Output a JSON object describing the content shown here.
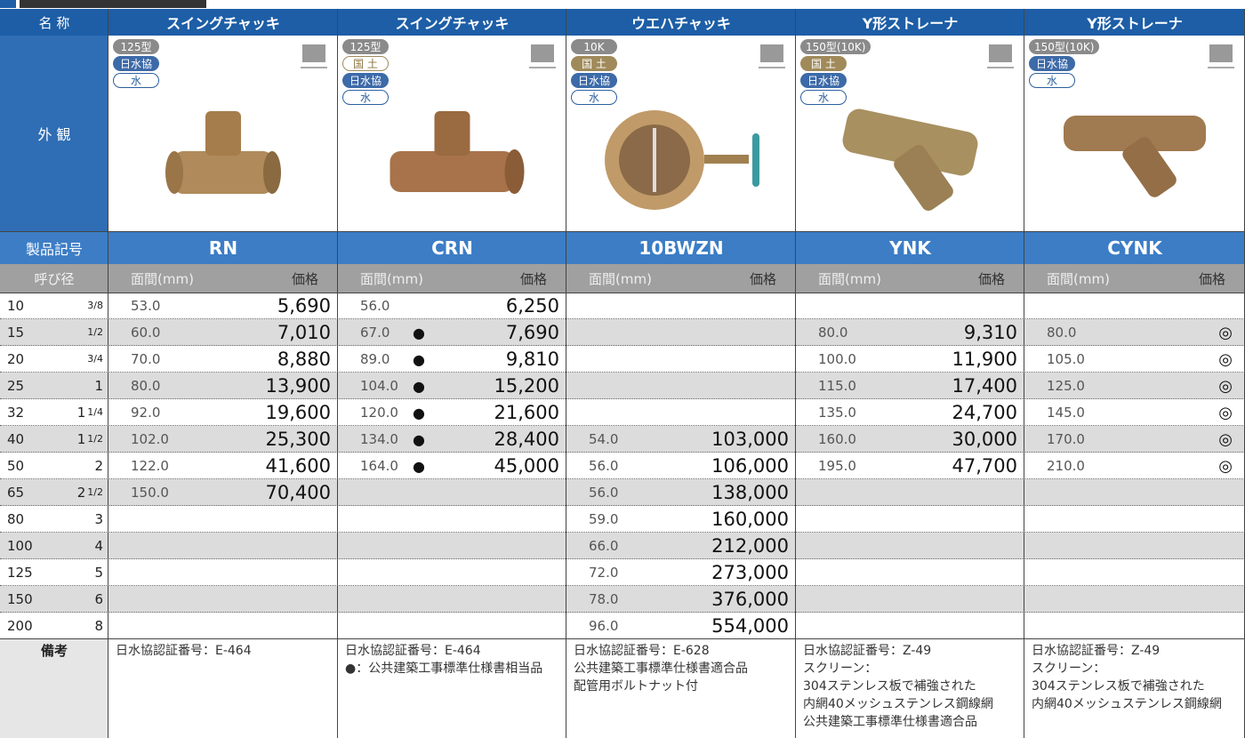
{
  "table": {
    "labels": {
      "name": "名 称",
      "appearance": "外 観",
      "code": "製品記号",
      "size": "呼び径",
      "notes": "備考"
    },
    "subheader": {
      "face": "面間(mm)",
      "price": "価格"
    },
    "sizes": [
      {
        "mm": "10",
        "whole": null,
        "fraction": "3/8"
      },
      {
        "mm": "15",
        "whole": null,
        "fraction": "1/2"
      },
      {
        "mm": "20",
        "whole": null,
        "fraction": "3/4"
      },
      {
        "mm": "25",
        "whole": "1",
        "fraction": null
      },
      {
        "mm": "32",
        "whole": "1",
        "fraction": "1/4"
      },
      {
        "mm": "40",
        "whole": "1",
        "fraction": "1/2"
      },
      {
        "mm": "50",
        "whole": "2",
        "fraction": null
      },
      {
        "mm": "65",
        "whole": "2",
        "fraction": "1/2"
      },
      {
        "mm": "80",
        "whole": "3",
        "fraction": null
      },
      {
        "mm": "100",
        "whole": "4",
        "fraction": null
      },
      {
        "mm": "125",
        "whole": "5",
        "fraction": null
      },
      {
        "mm": "150",
        "whole": "6",
        "fraction": null
      },
      {
        "mm": "200",
        "whole": "8",
        "fraction": null
      }
    ],
    "products": [
      {
        "name": "スイングチャッキ",
        "code": "RN",
        "badges": [
          {
            "text": "125型",
            "fill": "#8a8a8a",
            "ink": "#ffffff",
            "border": "#8a8a8a"
          },
          {
            "text": "日水協",
            "fill": "#3d6aa8",
            "ink": "#ffffff",
            "border": "#3d6aa8"
          },
          {
            "text": "水",
            "fill": "#ffffff",
            "ink": "#2a5fa0",
            "border": "#2a5fa0"
          }
        ],
        "rows": [
          {
            "face": "53.0",
            "price": "5,690"
          },
          {
            "face": "60.0",
            "price": "7,010"
          },
          {
            "face": "70.0",
            "price": "8,880"
          },
          {
            "face": "80.0",
            "price": "13,900"
          },
          {
            "face": "92.0",
            "price": "19,600"
          },
          {
            "face": "102.0",
            "price": "25,300"
          },
          {
            "face": "122.0",
            "price": "41,600"
          },
          {
            "face": "150.0",
            "price": "70,400"
          },
          null,
          null,
          null,
          null,
          null
        ],
        "notes": [
          "日水協認証番号：E-464"
        ]
      },
      {
        "name": "スイングチャッキ",
        "code": "CRN",
        "badges": [
          {
            "text": "125型",
            "fill": "#8a8a8a",
            "ink": "#ffffff",
            "border": "#8a8a8a"
          },
          {
            "text": "国 土",
            "fill": "#ffffff",
            "ink": "#8c7440",
            "border": "#a08a5a"
          },
          {
            "text": "日水協",
            "fill": "#3d6aa8",
            "ink": "#ffffff",
            "border": "#3d6aa8"
          },
          {
            "text": "水",
            "fill": "#ffffff",
            "ink": "#2a5fa0",
            "border": "#2a5fa0"
          }
        ],
        "rows": [
          {
            "face": "56.0",
            "price": "6,250"
          },
          {
            "face": "67.0",
            "mark": "●",
            "price": "7,690"
          },
          {
            "face": "89.0",
            "mark": "●",
            "price": "9,810"
          },
          {
            "face": "104.0",
            "mark": "●",
            "price": "15,200"
          },
          {
            "face": "120.0",
            "mark": "●",
            "price": "21,600"
          },
          {
            "face": "134.0",
            "mark": "●",
            "price": "28,400"
          },
          {
            "face": "164.0",
            "mark": "●",
            "price": "45,000"
          },
          null,
          null,
          null,
          null,
          null,
          null
        ],
        "notes": [
          "日水協認証番号：E-464",
          "●：公共建築工事標準仕様書相当品"
        ]
      },
      {
        "name": "ウエハチャッキ",
        "code": "10BWZN",
        "badges": [
          {
            "text": "10K",
            "fill": "#8a8a8a",
            "ink": "#ffffff",
            "border": "#8a8a8a"
          },
          {
            "text": "国 土",
            "fill": "#a08a5a",
            "ink": "#ffffff",
            "border": "#a08a5a"
          },
          {
            "text": "日水協",
            "fill": "#3d6aa8",
            "ink": "#ffffff",
            "border": "#3d6aa8"
          },
          {
            "text": "水",
            "fill": "#ffffff",
            "ink": "#2a5fa0",
            "border": "#2a5fa0"
          }
        ],
        "rows": [
          null,
          null,
          null,
          null,
          null,
          {
            "face": "54.0",
            "price": "103,000"
          },
          {
            "face": "56.0",
            "price": "106,000"
          },
          {
            "face": "56.0",
            "price": "138,000"
          },
          {
            "face": "59.0",
            "price": "160,000"
          },
          {
            "face": "66.0",
            "price": "212,000"
          },
          {
            "face": "72.0",
            "price": "273,000"
          },
          {
            "face": "78.0",
            "price": "376,000"
          },
          {
            "face": "96.0",
            "price": "554,000"
          }
        ],
        "notes": [
          "日水協認証番号：E-628",
          "公共建築工事標準仕様書適合品",
          "配管用ボルトナット付"
        ]
      },
      {
        "name": "Y形ストレーナ",
        "code": "YNK",
        "badges": [
          {
            "text": "150型(10K)",
            "fill": "#8a8a8a",
            "ink": "#ffffff",
            "border": "#8a8a8a"
          },
          {
            "text": "国 土",
            "fill": "#a08a5a",
            "ink": "#ffffff",
            "border": "#a08a5a"
          },
          {
            "text": "日水協",
            "fill": "#3d6aa8",
            "ink": "#ffffff",
            "border": "#3d6aa8"
          },
          {
            "text": "水",
            "fill": "#ffffff",
            "ink": "#2a5fa0",
            "border": "#2a5fa0"
          }
        ],
        "rows": [
          null,
          {
            "face": "80.0",
            "price": "9,310"
          },
          {
            "face": "100.0",
            "price": "11,900"
          },
          {
            "face": "115.0",
            "price": "17,400"
          },
          {
            "face": "135.0",
            "price": "24,700"
          },
          {
            "face": "160.0",
            "price": "30,000"
          },
          {
            "face": "195.0",
            "price": "47,700"
          },
          null,
          null,
          null,
          null,
          null,
          null
        ],
        "notes": [
          "日水協認証番号：Z-49",
          "スクリーン：",
          "304ステンレス板で補強された",
          "内網40メッシュステンレス鋼線網",
          "公共建築工事標準仕様書適合品"
        ]
      },
      {
        "name": "Y形ストレーナ",
        "code": "CYNK",
        "badges": [
          {
            "text": "150型(10K)",
            "fill": "#8a8a8a",
            "ink": "#ffffff",
            "border": "#8a8a8a"
          },
          {
            "text": "日水協",
            "fill": "#3d6aa8",
            "ink": "#ffffff",
            "border": "#3d6aa8"
          },
          {
            "text": "水",
            "fill": "#ffffff",
            "ink": "#2a5fa0",
            "border": "#2a5fa0"
          }
        ],
        "rows": [
          null,
          {
            "face": "80.0",
            "price": "◎"
          },
          {
            "face": "105.0",
            "price": "◎"
          },
          {
            "face": "125.0",
            "price": "◎"
          },
          {
            "face": "145.0",
            "price": "◎"
          },
          {
            "face": "170.0",
            "price": "◎"
          },
          {
            "face": "210.0",
            "price": "◎"
          },
          null,
          null,
          null,
          null,
          null,
          null
        ],
        "notes": [
          "日水協認証番号：Z-49",
          "スクリーン：",
          "304ステンレス板で補強された",
          "内網40メッシュステンレス鋼線網"
        ]
      }
    ]
  }
}
